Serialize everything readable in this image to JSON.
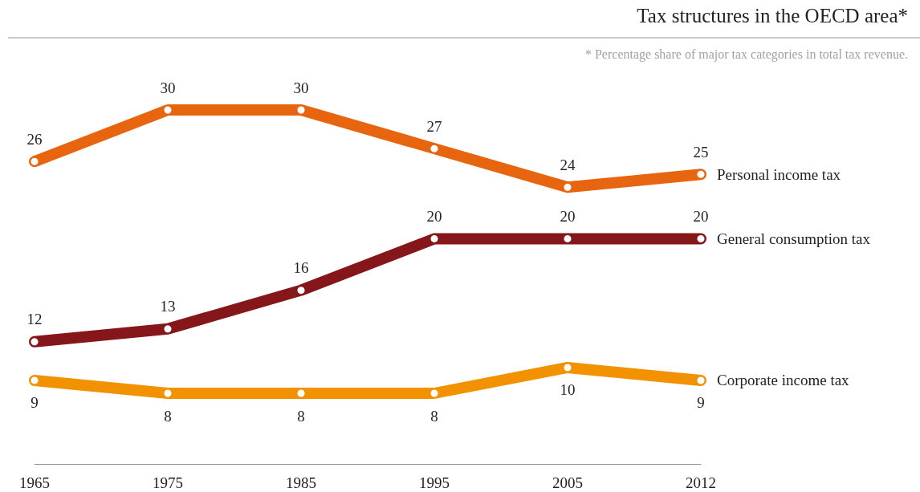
{
  "chart_data": {
    "type": "line",
    "title": "Tax structures in the OECD area*",
    "subtitle": "* Percentage share of major tax categories in total tax revenue.",
    "categories": [
      "1965",
      "1975",
      "1985",
      "1995",
      "2005",
      "2012"
    ],
    "series": [
      {
        "name": "Personal income tax",
        "color": "#e8650f",
        "values": [
          26,
          30,
          30,
          27,
          24,
          25
        ]
      },
      {
        "name": "General consumption tax",
        "color": "#85171b",
        "values": [
          12,
          13,
          16,
          20,
          20,
          20
        ]
      },
      {
        "name": "Corporate income tax",
        "color": "#f39200",
        "values": [
          9,
          8,
          8,
          8,
          10,
          9
        ]
      }
    ],
    "data_labels": true,
    "marker": "circle",
    "line_style": "solid",
    "grid": false,
    "legend": false
  }
}
